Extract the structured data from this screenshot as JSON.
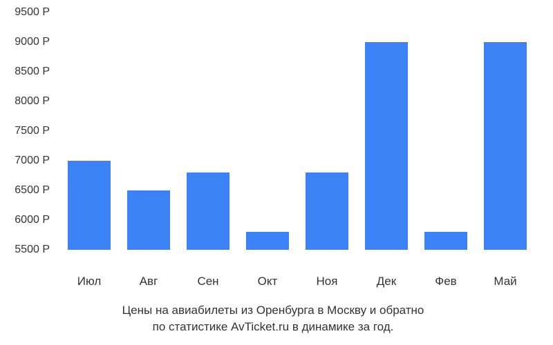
{
  "chart": {
    "type": "bar",
    "y_min": 5500,
    "y_max": 9500,
    "y_tick_step": 500,
    "y_tick_suffix": " Р",
    "y_ticks": [
      "9500 Р",
      "9000 Р",
      "8500 Р",
      "8000 Р",
      "7500 Р",
      "7000 Р",
      "6500 Р",
      "6000 Р",
      "5500 Р"
    ],
    "bar_color": "#3b82f6",
    "background_color": "#ffffff",
    "label_fontsize": 17,
    "tick_fontsize": 16,
    "categories": [
      "Июл",
      "Авг",
      "Сен",
      "Окт",
      "Ноя",
      "Дек",
      "Фев",
      "Май"
    ],
    "values": [
      7000,
      6500,
      6800,
      5800,
      6800,
      9000,
      5800,
      9000
    ]
  },
  "caption": {
    "line1": "Цены на авиабилеты из Оренбурга в Москву и обратно",
    "line2": "по статистике AvTicket.ru в динамике за год."
  }
}
